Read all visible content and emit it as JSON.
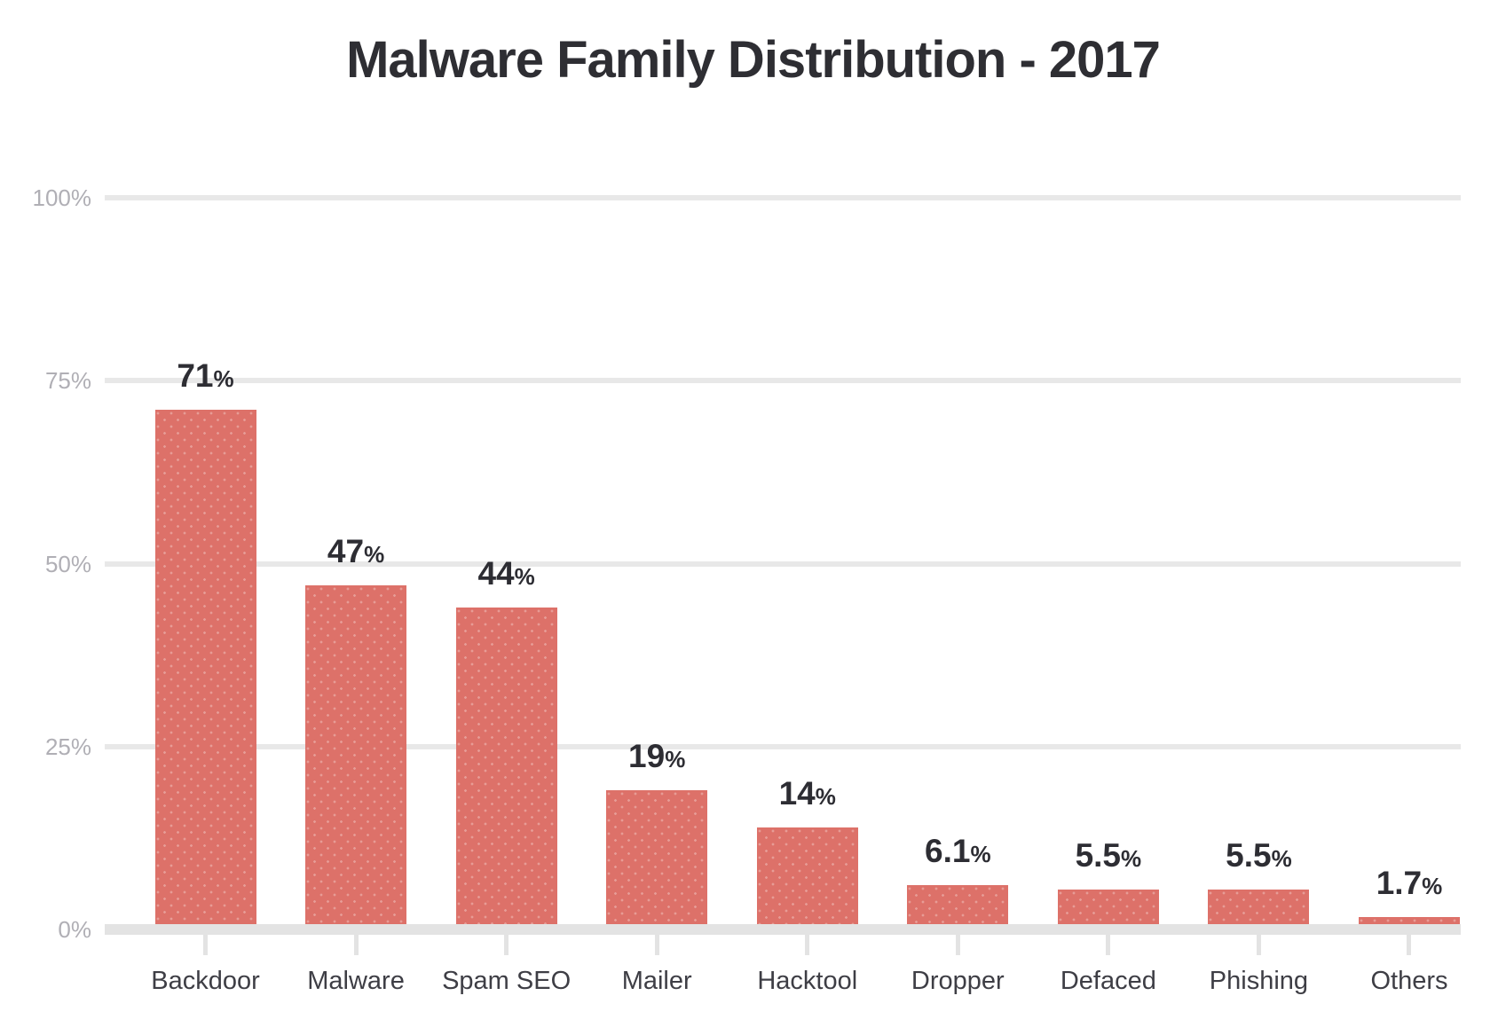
{
  "chart_data": {
    "type": "bar",
    "title": "Malware Family Distribution - 2017",
    "categories": [
      "Backdoor",
      "Malware",
      "Spam SEO",
      "Mailer",
      "Hacktool",
      "Dropper",
      "Defaced",
      "Phishing",
      "Others"
    ],
    "values": [
      71,
      47,
      44,
      19,
      14,
      6.1,
      5.5,
      5.5,
      1.7
    ],
    "unit": "%",
    "xlabel": "",
    "ylabel": "",
    "ylim": [
      0,
      100
    ],
    "yticks": [
      0,
      25,
      50,
      75,
      100
    ],
    "ytick_suffix": "%",
    "grid": true,
    "legend": false,
    "bar_color": "#dd7169"
  },
  "colors": {
    "bar": "#dd7169",
    "gridline": "#e8e8e8",
    "baseline": "#e3e3e3",
    "axis_label": "#b0afb5",
    "category_label": "#3e3e45",
    "value_label": "#2d2d33",
    "title": "#2e2e33",
    "background": "#ffffff"
  }
}
